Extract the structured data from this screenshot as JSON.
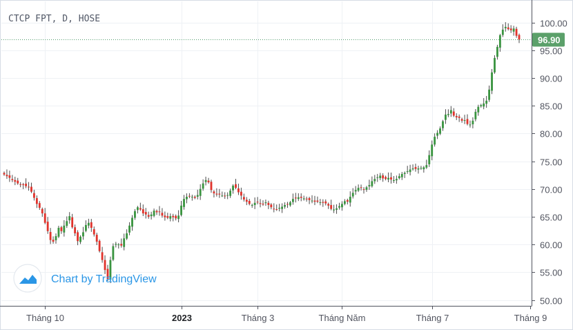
{
  "header": {
    "symbol_line": "CTCP FPT, D, HOSE"
  },
  "watermark": {
    "text": "Chart by TradingView",
    "icon": "tradingview-logo-icon"
  },
  "colors": {
    "up": "#3a9440",
    "down": "#e0332c",
    "wick": "#4a4a4a",
    "last_price_bg": "#5ba06a",
    "grid": "#eef1f5",
    "accent": "#2a96e6"
  },
  "chart_data": {
    "type": "candlestick",
    "title": "CTCP FPT, D, HOSE",
    "last_price": 96.9,
    "last_price_label": "96.90",
    "ylim": [
      49.5,
      102
    ],
    "y_ticks": [
      50,
      55,
      60,
      65,
      70,
      75,
      80,
      85,
      90,
      95,
      100
    ],
    "y_tick_labels": [
      "50.00",
      "55.00",
      "60.00",
      "65.00",
      "70.00",
      "75.00",
      "80.00",
      "85.00",
      "90.00",
      "95.00",
      "100.00"
    ],
    "x_ticks": [
      {
        "label": "Tháng 10",
        "bold": false,
        "index": 15
      },
      {
        "label": "2023",
        "bold": true,
        "index": 65
      },
      {
        "label": "Tháng 3",
        "bold": false,
        "index": 93
      },
      {
        "label": "Tháng Năm",
        "bold": false,
        "index": 124
      },
      {
        "label": "Tháng 7",
        "bold": false,
        "index": 157
      },
      {
        "label": "Tháng 9",
        "bold": false,
        "index": 193
      }
    ],
    "series": [
      {
        "name": "",
        "close": [
          72.6,
          72.3,
          72.0,
          71.6,
          71.3,
          71.0,
          70.8,
          70.7,
          70.5,
          70.3,
          69.5,
          68.4,
          67.3,
          66.6,
          65.6,
          63.9,
          62.4,
          60.8,
          60.5,
          61.5,
          63.0,
          62.4,
          63.4,
          64.2,
          65.1,
          63.1,
          62.0,
          60.6,
          61.4,
          62.2,
          63.5,
          63.9,
          63.0,
          61.8,
          60.5,
          58.8,
          57.2,
          55.4,
          53.8,
          57.2,
          59.7,
          60.1,
          60.0,
          59.8,
          61.1,
          62.0,
          63.4,
          64.8,
          66.0,
          66.7,
          66.3,
          65.6,
          65.4,
          65.0,
          65.4,
          66.1,
          65.8,
          65.9,
          65.2,
          64.9,
          64.8,
          65.1,
          64.9,
          64.7,
          65.2,
          67.0,
          68.2,
          68.6,
          68.7,
          68.6,
          68.4,
          68.9,
          70.0,
          71.0,
          71.6,
          71.2,
          69.8,
          69.2,
          69.0,
          69.0,
          68.8,
          68.7,
          68.9,
          69.7,
          70.6,
          70.2,
          69.4,
          68.8,
          68.1,
          67.7,
          67.3,
          67.1,
          67.5,
          67.6,
          67.3,
          67.2,
          67.6,
          67.1,
          66.7,
          66.4,
          66.3,
          66.6,
          66.8,
          67.1,
          67.2,
          67.6,
          68.2,
          68.3,
          68.5,
          68.4,
          68.3,
          68.2,
          68.0,
          67.9,
          67.7,
          67.7,
          67.6,
          67.5,
          67.4,
          67.0,
          66.4,
          66.3,
          66.5,
          66.9,
          67.3,
          67.8,
          67.7,
          68.6,
          69.3,
          69.8,
          70.2,
          70.2,
          69.9,
          70.3,
          70.7,
          71.4,
          71.8,
          72.1,
          72.4,
          71.9,
          71.8,
          72.0,
          71.7,
          71.6,
          71.8,
          72.3,
          72.7,
          72.9,
          73.2,
          73.5,
          73.7,
          73.6,
          73.7,
          73.8,
          73.9,
          74.3,
          76.1,
          78.0,
          79.4,
          80.1,
          80.9,
          82.2,
          83.4,
          83.5,
          84.2,
          83.2,
          82.9,
          82.8,
          82.3,
          82.4,
          81.7,
          81.6,
          82.3,
          83.9,
          84.8,
          85.1,
          85.4,
          85.9,
          87.9,
          91.0,
          93.6,
          95.6,
          97.7,
          98.7,
          99.2,
          98.8,
          98.6,
          98.9,
          97.6,
          96.9
        ]
      }
    ]
  }
}
